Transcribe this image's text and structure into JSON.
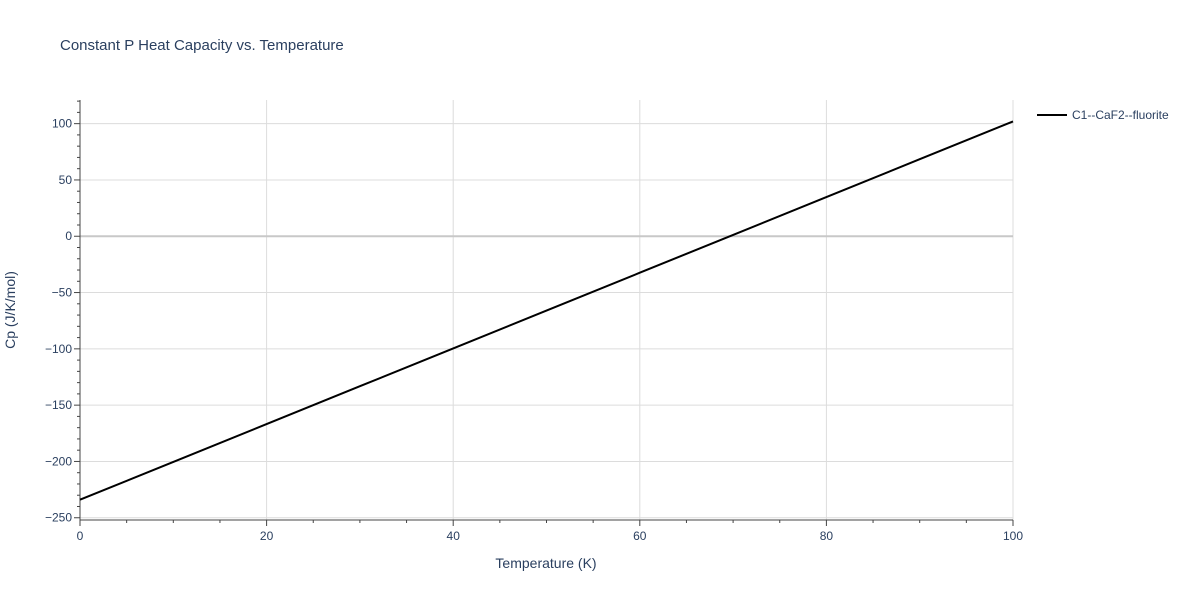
{
  "chart_data": {
    "type": "line",
    "title": "Constant P Heat Capacity vs. Temperature",
    "xlabel": "Temperature (K)",
    "ylabel": "Cp (J/K/mol)",
    "xlim": [
      0,
      100
    ],
    "ylim": [
      -252,
      121
    ],
    "x_ticks": [
      0,
      20,
      40,
      60,
      80,
      100
    ],
    "y_ticks": [
      100,
      50,
      0,
      -50,
      -100,
      -150,
      -200,
      -250
    ],
    "x_tick_labels": [
      "0",
      "20",
      "40",
      "60",
      "80",
      "100"
    ],
    "y_tick_labels": [
      "100",
      "50",
      "0",
      "−50",
      "−100",
      "−150",
      "−200",
      "−250"
    ],
    "grid": true,
    "legend_position": "top-right",
    "series": [
      {
        "name": "C1--CaF2--fluorite",
        "color": "#000000",
        "x": [
          0,
          10,
          20,
          30,
          40,
          50,
          60,
          70,
          80,
          90,
          100
        ],
        "y": [
          -234,
          -200.4,
          -166.8,
          -133.2,
          -99.6,
          -66,
          -32.4,
          1.2,
          34.8,
          68.4,
          102
        ]
      }
    ]
  }
}
